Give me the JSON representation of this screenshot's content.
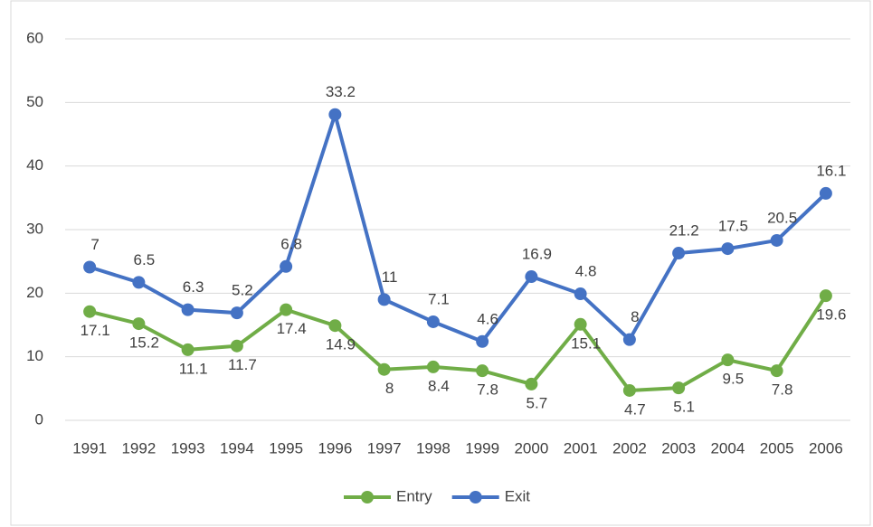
{
  "chart_data": {
    "type": "line",
    "stacked": true,
    "categories": [
      "1991",
      "1992",
      "1993",
      "1994",
      "1995",
      "1996",
      "1997",
      "1998",
      "1999",
      "2000",
      "2001",
      "2002",
      "2003",
      "2004",
      "2005",
      "2006"
    ],
    "series": [
      {
        "name": "Entry",
        "color": "#70ad47",
        "values": [
          17.1,
          15.2,
          11.1,
          11.7,
          17.4,
          14.9,
          8,
          8.4,
          7.8,
          5.7,
          15.1,
          4.7,
          5.1,
          9.5,
          7.8,
          19.6
        ]
      },
      {
        "name": "Exit",
        "color": "#4472c4",
        "values": [
          7,
          6.5,
          6.3,
          5.2,
          6.8,
          33.2,
          11,
          7.1,
          4.6,
          16.9,
          4.8,
          8,
          21.2,
          17.5,
          20.5,
          16.1
        ]
      }
    ],
    "ylim": [
      0,
      60
    ],
    "yticks": [
      0,
      10,
      20,
      30,
      40,
      50,
      60
    ],
    "grid": true,
    "legend": "bottom"
  }
}
